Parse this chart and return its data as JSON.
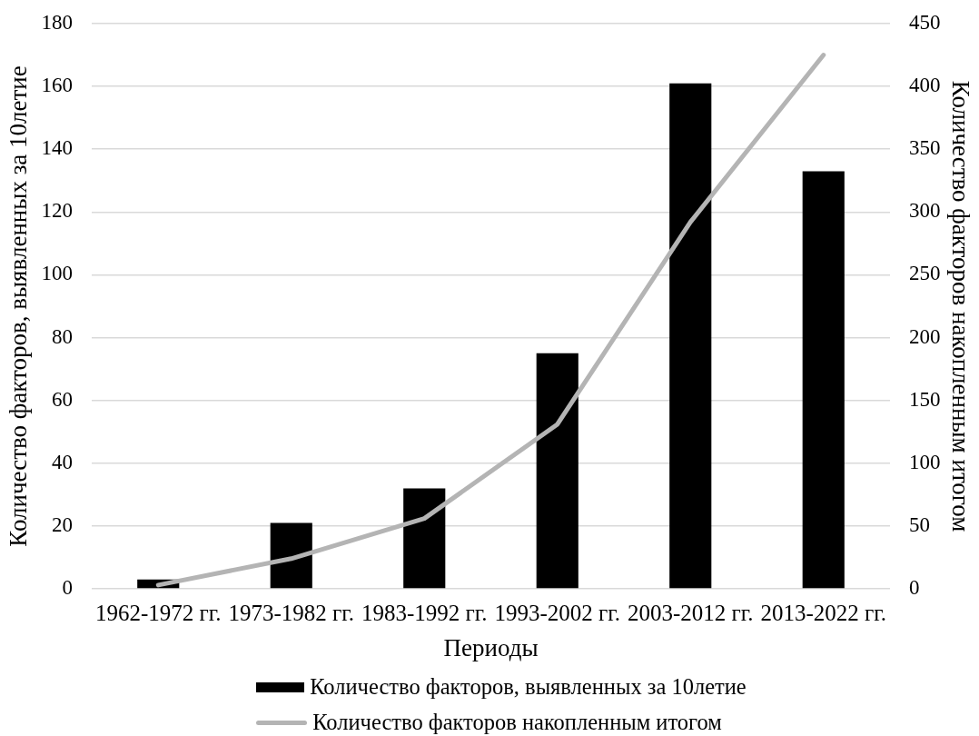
{
  "chart_data": {
    "type": "bar",
    "categories": [
      "1962-1972 гг.",
      "1973-1982 гг.",
      "1983-1992 гг.",
      "1993-2002 гг.",
      "2003-2012 гг.",
      "2013-2022 гг."
    ],
    "xlabel": "Периоды",
    "ylabel": "Количество факторов, выявленных за 10летие",
    "y2label": "Количество факторов накопленным итогом",
    "series": [
      {
        "name": "Количество факторов, выявленных за 10летие",
        "color": "#000000",
        "values": [
          3,
          21,
          32,
          75,
          161,
          133
        ]
      },
      {
        "name": "Количество факторов накопленным итогом",
        "type": "line",
        "axis": "y2",
        "color": "#b4b4b4",
        "values": [
          3,
          24,
          56,
          131,
          292,
          425
        ]
      }
    ],
    "ylim": [
      0,
      180
    ],
    "yticks": [
      0,
      20,
      40,
      60,
      80,
      100,
      120,
      140,
      160,
      180
    ],
    "y2lim": [
      0,
      450
    ],
    "y2ticks": [
      0,
      50,
      100,
      150,
      200,
      250,
      300,
      350,
      400,
      450
    ],
    "grid": "y",
    "legend": "bottom",
    "marker": "none",
    "line_style": "solid"
  }
}
